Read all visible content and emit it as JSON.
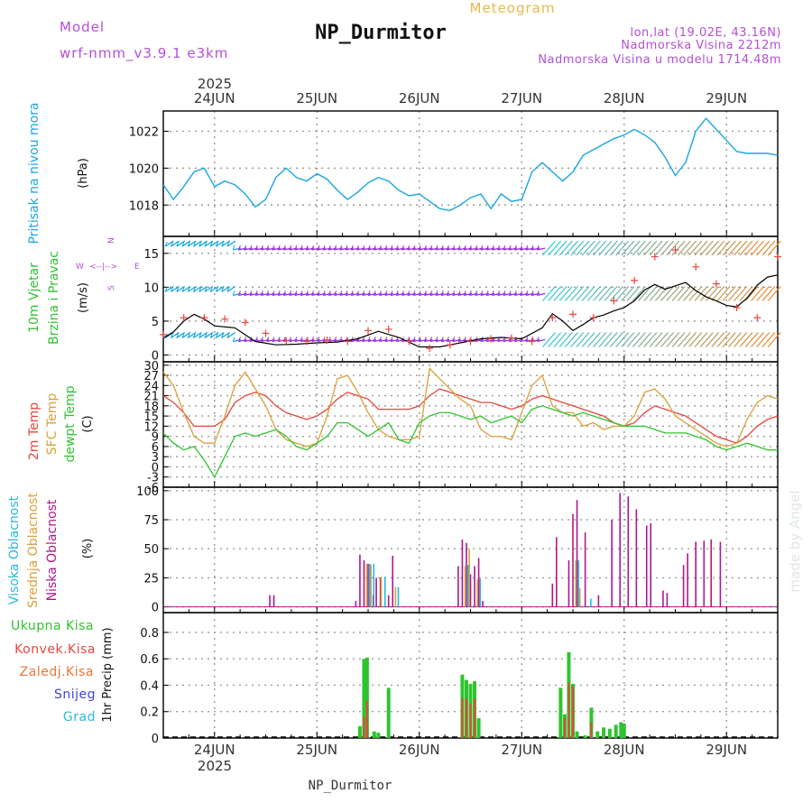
{
  "header": {
    "title": "NP_Durmitor",
    "product": "Meteogram",
    "model_label": "Model",
    "model_name": "wrf-nmm_v3.9.1 e3km",
    "lonlat": "lon,lat (19.02E, 43.16N)",
    "elevation": "Nadmorska Visina 2212m",
    "model_elevation": "Nadmorska Visina u modelu 1714.48m",
    "footer_station": "NP_Durmitor",
    "watermark": "made by Angel"
  },
  "colors": {
    "pressure": "#1ba6e0",
    "temp2m": "#e8453c",
    "sfc_temp": "#d9a03a",
    "dewpoint": "#2fc42f",
    "high_cloud": "#28b8e0",
    "mid_cloud": "#d9a03a",
    "low_cloud": "#b0168c",
    "total_precip": "#2fc42f",
    "conv_precip": "#e8453c",
    "snow": "#4040e0",
    "grid": "#9a9a9a",
    "header_purple": "#b44fd6",
    "header_orange": "#e8b84a"
  },
  "chart_data": [
    {
      "type": "line",
      "title": "Pritisak na nivou mora",
      "ylabel": "(hPa)",
      "x_label_top_year": "2025",
      "x_ticks": [
        "24JUN",
        "25JUN",
        "26JUN",
        "27JUN",
        "28JUN",
        "29JUN"
      ],
      "xlim_days": [
        -0.5,
        5.5
      ],
      "ylim": [
        1016.3,
        1023.1
      ],
      "yticks": [
        1018,
        1020,
        1022
      ],
      "grid": true,
      "series": [
        {
          "name": "Sea level pressure",
          "color": "#1ba6e0",
          "x": [
            -0.5,
            -0.4,
            -0.3,
            -0.2,
            -0.1,
            0.0,
            0.1,
            0.2,
            0.3,
            0.4,
            0.5,
            0.6,
            0.7,
            0.8,
            0.9,
            1.0,
            1.1,
            1.2,
            1.3,
            1.4,
            1.5,
            1.6,
            1.7,
            1.8,
            1.9,
            2.0,
            2.1,
            2.2,
            2.3,
            2.4,
            2.5,
            2.6,
            2.7,
            2.8,
            2.9,
            3.0,
            3.1,
            3.2,
            3.3,
            3.4,
            3.5,
            3.6,
            3.7,
            3.8,
            3.9,
            4.0,
            4.1,
            4.2,
            4.3,
            4.4,
            4.5,
            4.6,
            4.7,
            4.8,
            4.9,
            5.0,
            5.1,
            5.2,
            5.3,
            5.4,
            5.5
          ],
          "values": [
            1019.1,
            1018.3,
            1019.0,
            1019.8,
            1020.0,
            1019.0,
            1019.3,
            1019.1,
            1018.6,
            1017.9,
            1018.3,
            1019.5,
            1020.0,
            1019.5,
            1019.3,
            1019.7,
            1019.4,
            1018.8,
            1018.3,
            1018.7,
            1019.2,
            1019.5,
            1019.3,
            1018.8,
            1018.5,
            1018.6,
            1018.2,
            1017.8,
            1017.7,
            1018.0,
            1018.4,
            1018.6,
            1017.8,
            1018.6,
            1018.2,
            1018.3,
            1019.8,
            1020.3,
            1019.8,
            1019.3,
            1019.8,
            1020.7,
            1021.0,
            1021.3,
            1021.6,
            1021.8,
            1022.1,
            1021.8,
            1021.4,
            1020.6,
            1019.6,
            1020.3,
            1022.0,
            1022.7,
            1022.1,
            1021.5,
            1020.9,
            1020.8,
            1020.8,
            1020.8,
            1020.7
          ]
        }
      ]
    },
    {
      "type": "line",
      "title": "10m Vjetar Brzina i Pravac",
      "ylabel": "(m/s)",
      "direction_legend": [
        "W",
        "<--|-->",
        "E",
        "S",
        "N"
      ],
      "xlim_days": [
        -0.5,
        5.5
      ],
      "ylim": [
        -1,
        17.5
      ],
      "yticks": [
        0,
        5,
        10,
        15
      ],
      "grid": true,
      "series": [
        {
          "name": "Wind speed",
          "color": "#000000",
          "x": [
            -0.5,
            -0.4,
            -0.3,
            -0.2,
            -0.1,
            0.0,
            0.2,
            0.4,
            0.6,
            0.8,
            1.0,
            1.2,
            1.4,
            1.6,
            1.8,
            2.0,
            2.2,
            2.4,
            2.6,
            2.8,
            3.0,
            3.2,
            3.3,
            3.4,
            3.5,
            3.6,
            3.7,
            3.8,
            3.9,
            4.0,
            4.1,
            4.2,
            4.3,
            4.4,
            4.5,
            4.6,
            4.7,
            4.8,
            4.9,
            5.0,
            5.1,
            5.2,
            5.3,
            5.4,
            5.5
          ],
          "values": [
            2.5,
            3.4,
            5.0,
            6.0,
            5.3,
            4.3,
            4.0,
            2.0,
            1.5,
            1.6,
            1.8,
            1.9,
            2.4,
            3.5,
            2.6,
            1.2,
            1.2,
            1.8,
            2.4,
            2.6,
            2.4,
            4.0,
            6.1,
            5.0,
            3.6,
            4.5,
            5.5,
            5.9,
            6.5,
            7.0,
            8.0,
            9.6,
            10.4,
            9.7,
            10.2,
            10.7,
            9.5,
            8.6,
            8.0,
            7.3,
            7.1,
            8.4,
            10.3,
            11.5,
            11.8
          ]
        },
        {
          "name": "Wind gust (marker +)",
          "color": "#e8453c",
          "x": [
            -0.5,
            -0.3,
            -0.1,
            0.1,
            0.3,
            0.5,
            0.7,
            0.9,
            1.1,
            1.3,
            1.5,
            1.7,
            1.9,
            2.1,
            2.3,
            2.5,
            2.7,
            2.9,
            3.1,
            3.3,
            3.5,
            3.7,
            3.9,
            4.1,
            4.3,
            4.5,
            4.7,
            4.9,
            5.1,
            5.3,
            5.5
          ],
          "values": [
            3.0,
            5.5,
            5.5,
            5.3,
            4.8,
            3.2,
            2.1,
            2.0,
            2.2,
            2.0,
            3.6,
            3.8,
            2.0,
            1.0,
            1.5,
            2.0,
            2.4,
            2.5,
            2.0,
            5.5,
            6.0,
            5.5,
            8.0,
            11.0,
            14.5,
            15.5,
            13.0,
            10.5,
            7.0,
            5.5,
            14.5
          ]
        }
      ]
    },
    {
      "type": "line",
      "title": "2m Temp / SFC Temp / dewpt Temp",
      "ylabel": "(C)",
      "xlim_days": [
        -0.5,
        5.5
      ],
      "ylim": [
        -6,
        31
      ],
      "yticks": [
        -6,
        -3,
        0,
        3,
        6,
        9,
        12,
        15,
        18,
        21,
        24,
        27,
        30
      ],
      "grid": true,
      "series": [
        {
          "name": "2m Temp",
          "color": "#e8453c",
          "x": [
            -0.5,
            -0.4,
            -0.3,
            -0.2,
            -0.1,
            0.0,
            0.1,
            0.2,
            0.3,
            0.4,
            0.5,
            0.6,
            0.7,
            0.8,
            0.9,
            1.0,
            1.1,
            1.2,
            1.3,
            1.4,
            1.5,
            1.6,
            1.7,
            1.8,
            1.9,
            2.0,
            2.1,
            2.2,
            2.3,
            2.4,
            2.5,
            2.6,
            2.7,
            2.8,
            2.9,
            3.0,
            3.1,
            3.2,
            3.3,
            3.4,
            3.5,
            3.6,
            3.7,
            3.8,
            3.9,
            4.0,
            4.1,
            4.2,
            4.3,
            4.4,
            4.5,
            4.6,
            4.7,
            4.8,
            4.9,
            5.0,
            5.1,
            5.2,
            5.3,
            5.4,
            5.5
          ],
          "values": [
            21,
            19,
            16,
            12,
            12,
            12,
            14,
            19,
            21,
            22,
            21,
            18,
            16,
            15,
            14,
            15,
            17,
            20,
            22,
            21,
            20,
            17,
            17,
            17,
            17,
            18,
            21,
            23,
            22,
            21,
            20,
            19,
            19,
            18,
            17,
            18,
            20,
            21,
            20,
            19,
            18,
            17,
            16,
            15,
            13,
            12,
            13,
            16,
            18,
            17,
            16,
            15,
            13,
            11,
            9,
            8,
            7,
            9,
            12,
            14,
            15
          ]
        },
        {
          "name": "SFC Temp",
          "color": "#d9a03a",
          "x": [
            -0.5,
            -0.4,
            -0.3,
            -0.2,
            -0.1,
            0.0,
            0.1,
            0.2,
            0.3,
            0.4,
            0.5,
            0.6,
            0.7,
            0.8,
            0.9,
            1.0,
            1.1,
            1.2,
            1.3,
            1.4,
            1.5,
            1.6,
            1.7,
            1.8,
            1.9,
            2.0,
            2.1,
            2.2,
            2.3,
            2.4,
            2.5,
            2.6,
            2.7,
            2.8,
            2.9,
            3.0,
            3.1,
            3.2,
            3.3,
            3.4,
            3.5,
            3.6,
            3.7,
            3.8,
            3.9,
            4.0,
            4.1,
            4.2,
            4.3,
            4.4,
            4.5,
            4.6,
            4.7,
            4.8,
            4.9,
            5.0,
            5.1,
            5.2,
            5.3,
            5.4,
            5.5
          ],
          "values": [
            28,
            24,
            16,
            9,
            7,
            7,
            15,
            24,
            28,
            23,
            18,
            11,
            8,
            7,
            6,
            7,
            15,
            26,
            27,
            22,
            16,
            11,
            9,
            8,
            8,
            9,
            29,
            26,
            23,
            20,
            18,
            11,
            9,
            9,
            8,
            16,
            24,
            27,
            18,
            16,
            16,
            12,
            13,
            11,
            12,
            12,
            15,
            22,
            23,
            20,
            15,
            13,
            11,
            9,
            7,
            6,
            7,
            14,
            19,
            21,
            20
          ]
        },
        {
          "name": "dewpt Temp",
          "color": "#2fc42f",
          "x": [
            -0.5,
            -0.4,
            -0.3,
            -0.2,
            -0.1,
            0.0,
            0.1,
            0.2,
            0.3,
            0.4,
            0.5,
            0.6,
            0.7,
            0.8,
            0.9,
            1.0,
            1.1,
            1.2,
            1.3,
            1.4,
            1.5,
            1.6,
            1.7,
            1.8,
            1.9,
            2.0,
            2.1,
            2.2,
            2.3,
            2.4,
            2.5,
            2.6,
            2.7,
            2.8,
            2.9,
            3.0,
            3.1,
            3.2,
            3.3,
            3.4,
            3.5,
            3.6,
            3.7,
            3.8,
            3.9,
            4.0,
            4.1,
            4.2,
            4.3,
            4.4,
            4.5,
            4.6,
            4.7,
            4.8,
            4.9,
            5.0,
            5.1,
            5.2,
            5.3,
            5.4,
            5.5
          ],
          "values": [
            10,
            7,
            5,
            6,
            2,
            -3,
            3,
            9,
            10,
            9,
            10,
            11,
            9,
            6,
            5,
            7,
            9,
            13,
            13,
            11,
            9,
            11,
            13,
            8,
            7,
            13,
            15,
            16,
            16,
            15,
            14,
            15,
            13,
            14,
            15,
            13,
            17,
            18,
            17,
            16,
            15,
            16,
            15,
            14,
            13,
            12,
            12,
            12,
            11,
            10,
            10,
            10,
            9,
            8,
            6,
            5,
            6,
            7,
            6,
            5,
            5
          ]
        }
      ]
    },
    {
      "type": "bar",
      "title": "Visoka / Srednja / Niska Oblacnost",
      "ylabel": "(%)",
      "xlim_days": [
        -0.5,
        5.5
      ],
      "ylim": [
        -5,
        103
      ],
      "yticks": [
        0,
        25,
        50,
        75,
        100
      ],
      "grid": true,
      "series": [
        {
          "name": "Niska Oblacnost",
          "color": "#b0168c",
          "x": [
            0.54,
            0.58,
            1.38,
            1.42,
            1.46,
            1.5,
            1.55,
            1.58,
            1.62,
            1.7,
            1.74,
            2.38,
            2.42,
            2.46,
            2.5,
            2.54,
            2.58,
            2.62,
            3.3,
            3.34,
            3.46,
            3.5,
            3.54,
            3.62,
            3.75,
            3.88,
            3.96,
            4.04,
            4.12,
            4.22,
            4.26,
            4.38,
            4.42,
            4.58,
            4.62,
            4.7,
            4.78,
            4.85,
            4.94
          ],
          "values": [
            10,
            10,
            5,
            45,
            40,
            37,
            10,
            25,
            25,
            10,
            44,
            35,
            58,
            55,
            28,
            35,
            42,
            5,
            20,
            60,
            40,
            80,
            92,
            64,
            10,
            75,
            98,
            95,
            84,
            70,
            72,
            14,
            12,
            36,
            46,
            56,
            57,
            58,
            56
          ]
        },
        {
          "name": "Srednja Oblacnost",
          "color": "#d9a03a",
          "x": [
            1.47,
            1.51,
            1.61,
            1.75,
            2.43,
            2.47,
            2.55,
            3.51,
            3.55
          ],
          "values": [
            37,
            36,
            26,
            17,
            35,
            50,
            24,
            40,
            16
          ]
        },
        {
          "name": "Visoka Oblacnost",
          "color": "#28b8e0",
          "x": [
            1.48,
            1.52,
            1.63,
            1.76,
            2.44,
            2.56,
            3.52,
            3.64
          ],
          "values": [
            37,
            37,
            26,
            17,
            36,
            24,
            40,
            7
          ]
        }
      ]
    },
    {
      "type": "bar",
      "title": "1hr Precip",
      "ylabel": "1hr Precip (mm)",
      "legend": [
        "Ukupna Kisa",
        "Konvek.Kisa",
        "Zaledj.Kisa",
        "Snijeg",
        "Grad"
      ],
      "x_ticks": [
        "24JUN",
        "25JUN",
        "26JUN",
        "27JUN",
        "28JUN",
        "29JUN"
      ],
      "x_label_bottom_year": "2025",
      "xlim_days": [
        -0.5,
        5.5
      ],
      "ylim": [
        0,
        0.95
      ],
      "yticks": [
        0,
        0.2,
        0.4,
        0.6,
        0.8
      ],
      "grid": true,
      "series": [
        {
          "name": "Ukupna Kisa",
          "color": "#2fc42f",
          "x": [
            1.42,
            1.46,
            1.49,
            1.56,
            1.6,
            1.7,
            2.42,
            2.46,
            2.5,
            2.54,
            2.58,
            3.38,
            3.42,
            3.46,
            3.5,
            3.54,
            3.62,
            3.68,
            3.74,
            3.8,
            3.86,
            3.92,
            3.97,
            4.0
          ],
          "values": [
            0.09,
            0.6,
            0.61,
            0.05,
            0.04,
            0.38,
            0.48,
            0.44,
            0.41,
            0.43,
            0.15,
            0.38,
            0.18,
            0.65,
            0.41,
            0.05,
            0.02,
            0.23,
            0.05,
            0.08,
            0.07,
            0.1,
            0.12,
            0.11
          ]
        },
        {
          "name": "Konvek.Kisa",
          "color": "#e8453c",
          "x": [
            1.46,
            1.49,
            2.42,
            2.46,
            2.5,
            2.54,
            3.42,
            3.46,
            3.5,
            3.68
          ],
          "values": [
            0.16,
            0.28,
            0.3,
            0.3,
            0.26,
            0.3,
            0.15,
            0.42,
            0.39,
            0.12
          ]
        }
      ]
    }
  ],
  "panels": {
    "pressure_title": "Pritisak na nivou mora",
    "pressure_unit": "(hPa)",
    "wind_title_1": "10m Vjetar",
    "wind_title_2": "Brzina i Pravac",
    "wind_unit": "(m/s)",
    "wind_dir_w": "W",
    "wind_dir_arrow": "<--|-->",
    "wind_dir_e": "E",
    "wind_dir_s": "S",
    "wind_dir_n": "N",
    "temp_2m": "2m Temp",
    "temp_sfc": "SFC Temp",
    "temp_dew": "dewpt Temp",
    "temp_unit": "(C)",
    "cloud_high": "Visoka Oblacnost",
    "cloud_mid": "Srednja Oblacnost",
    "cloud_low": "Niska Oblacnost",
    "cloud_unit": "(%)",
    "precip_unit": "1hr Precip (mm)",
    "legend_total": "Ukupna Kisa",
    "legend_conv": "Konvek.Kisa",
    "legend_frz": "Zaledj.Kisa",
    "legend_snow": "Snijeg",
    "legend_hail": "Grad"
  }
}
